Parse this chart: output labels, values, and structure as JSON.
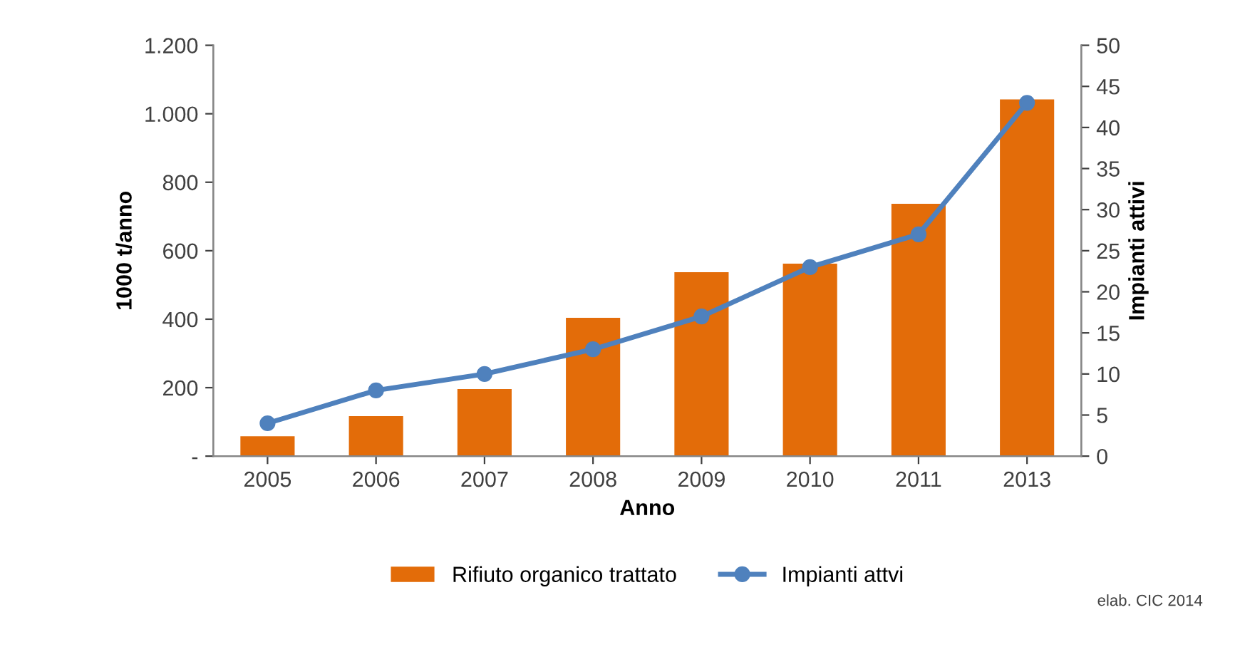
{
  "chart_data": {
    "type": "bar",
    "xlabel": "Anno",
    "ylabel": "1000 t/anno",
    "y2label": "Impianti attivi",
    "categories": [
      "2005",
      "2006",
      "2007",
      "2008",
      "2009",
      "2010",
      "2011",
      "2013"
    ],
    "series": [
      {
        "name": "Rifiuto organico trattato",
        "color": "#e36c09",
        "values": [
          58,
          117,
          196,
          404,
          537,
          562,
          737,
          1042
        ]
      },
      {
        "name": "Impianti attvi",
        "type": "line",
        "axis": "y2",
        "color": "#4f81bd",
        "marker": "circle",
        "values": [
          4,
          8,
          10,
          13,
          17,
          23,
          27,
          43
        ]
      }
    ],
    "ylim": [
      0,
      1200
    ],
    "yticks": [
      {
        "value": 0,
        "label": "-"
      },
      {
        "value": 200,
        "label": "200"
      },
      {
        "value": 400,
        "label": "400"
      },
      {
        "value": 600,
        "label": "600"
      },
      {
        "value": 800,
        "label": "800"
      },
      {
        "value": 1000,
        "label": "1.000"
      },
      {
        "value": 1200,
        "label": "1.200"
      }
    ],
    "y2lim": [
      0,
      50
    ],
    "y2ticks": [
      0,
      5,
      10,
      15,
      20,
      25,
      30,
      35,
      40,
      45,
      50
    ],
    "legend": "bottom",
    "annotations": [
      "elab. CIC 2014"
    ]
  }
}
